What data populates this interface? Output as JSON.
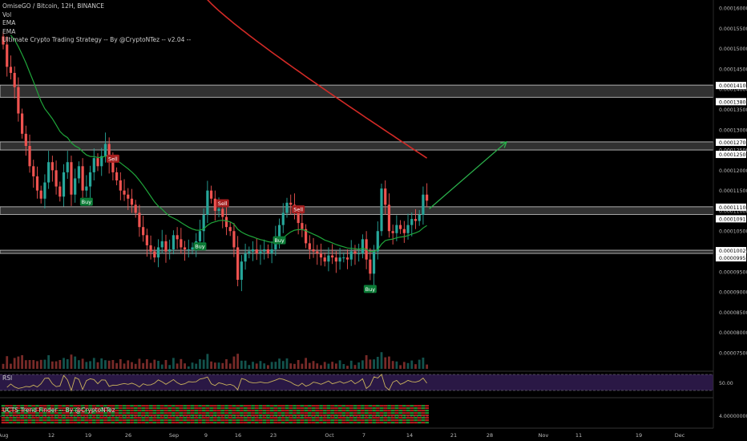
{
  "legend": {
    "symbol": "OmiseGO / Bitcoin, 12H, BINANCE",
    "vol": "Vol",
    "ema1": "EMA",
    "ema2": "EMA",
    "strategy": "Ultimate Crypto Trading Strategy -- By @CryptoNTez -- v2.04 --"
  },
  "rsi_pane": {
    "label": "RSI",
    "level": "50.00"
  },
  "trend_pane": {
    "label": "UCTS Trend Finder -- By @CryptoNTez",
    "level": "4.00000000"
  },
  "chart_data": {
    "type": "candlestick",
    "symbol": "OmiseGO / Bitcoin",
    "interval": "12H",
    "exchange": "BINANCE",
    "price_axis_ticks": [
      "0.00016000",
      "0.00015500",
      "0.00015000",
      "0.00014500",
      "0.00014000",
      "0.00013500",
      "0.00013000",
      "0.00012500",
      "0.00012000",
      "0.00011500",
      "0.00011000",
      "0.00010500",
      "0.00010000",
      "0.00009500",
      "0.00009000",
      "0.00008500",
      "0.00008000",
      "0.00007500"
    ],
    "ylim": [
      7.25e-05,
      0.0001628
    ],
    "time_axis_labels": [
      "Aug",
      "12",
      "19",
      "26",
      "Sep",
      "9",
      "16",
      "23",
      "Oct",
      "7",
      "14",
      "21",
      "28",
      "Nov",
      "11",
      "19",
      "Dec",
      "9",
      "23",
      "2020"
    ],
    "horizontal_zones": [
      {
        "top": 0.000141,
        "bottom": 0.000138,
        "top_label": "0.00014100",
        "bottom_label": "0.00013800"
      },
      {
        "top": 0.000127,
        "bottom": 0.000125,
        "top_label": "0.00012700",
        "bottom_label": "0.00012500"
      },
      {
        "top": 0.000111,
        "bottom": 0.00010912,
        "top_label": "0.00011100",
        "bottom_label": "0.00010912"
      },
      {
        "top": 0.00010029,
        "bottom": 9.95e-05,
        "top_label": "0.00010029",
        "bottom_label": "0.00009950"
      }
    ],
    "signals": [
      {
        "type": "Buy",
        "date_index": 22
      },
      {
        "type": "Sell",
        "date_index": 29
      },
      {
        "type": "Buy",
        "date_index": 52
      },
      {
        "type": "Sell",
        "date_index": 58
      },
      {
        "type": "Buy",
        "date_index": 73
      },
      {
        "type": "Sell",
        "date_index": 78
      },
      {
        "type": "Buy",
        "date_index": 97
      }
    ],
    "close_prices": [
      0.000151,
      0.0001455,
      0.000144,
      0.0001405,
      0.000134,
      0.000129,
      0.000126,
      0.000121,
      0.0001185,
      0.000115,
      0.000113,
      0.000117,
      0.000122,
      0.00012,
      0.000116,
      0.0001135,
      0.0001195,
      0.000122,
      0.000114,
      0.000118,
      0.000121,
      0.000115,
      0.000116,
      0.0001195,
      0.000123,
      0.000121,
      0.0001235,
      0.0001265,
      0.000122,
      0.0001195,
      0.0001175,
      0.000115,
      0.000114,
      0.000113,
      0.0001115,
      0.0001095,
      0.000106,
      0.000104,
      0.0001015,
      0.0001,
      9.85e-05,
      0.000101,
      0.0001025,
      0.0001,
      0.0001005,
      0.000104,
      0.000103,
      0.000101,
      0.0001005,
      0.0001005,
      0.000101,
      0.0001025,
      0.000105,
      0.000109,
      0.000115,
      0.000113,
      0.00011,
      0.0001105,
      0.0001085,
      0.000106,
      0.000105,
      0.000101,
      9.3e-05,
      9.75e-05,
      9.95e-05,
      0.0001,
      0.0001005,
      9.95e-05,
      0.0001,
      0.0001005,
      9.95e-05,
      0.0001005,
      0.0001035,
      0.0001065,
      0.0001095,
      0.000112,
      0.0001115,
      0.0001095,
      0.000107,
      0.0001055,
      0.000102,
      0.0001005,
      0.0001,
      9.95e-05,
      9.85e-05,
      9.75e-05,
      9.9e-05,
      9.85e-05,
      9.75e-05,
      9.85e-05,
      9.85e-05,
      9.8e-05,
      0.0001,
      9.95e-05,
      9.95e-05,
      0.000103,
      9.8e-05,
      9.45e-05,
      0.0001,
      0.000105,
      0.0001155,
      0.0001115,
      0.000105,
      0.0001045,
      0.0001065,
      0.0001055,
      0.0001045,
      0.0001065,
      0.000108,
      0.0001075,
      0.000109,
      0.000114,
      0.0001125
    ],
    "ema_fast_start": 0.0001555,
    "ema_slow": {
      "start": 0.000165,
      "end": 0.000123
    },
    "projection": {
      "from": 0.0001105,
      "to": 0.000127
    }
  },
  "colors": {
    "background": "#000000",
    "up_candle": "#26a69a",
    "down_candle": "#ef5350",
    "ema_fast": "#1fa53a",
    "ema_slow": "#d32a26",
    "projection_arrow": "#2bb24c",
    "zone_fill": "#5a5a5a",
    "rsi_line": "#c8b05c",
    "rsi_band": "#2a1845",
    "buy_label": "#0b7b36",
    "sell_label": "#a51e1e"
  }
}
